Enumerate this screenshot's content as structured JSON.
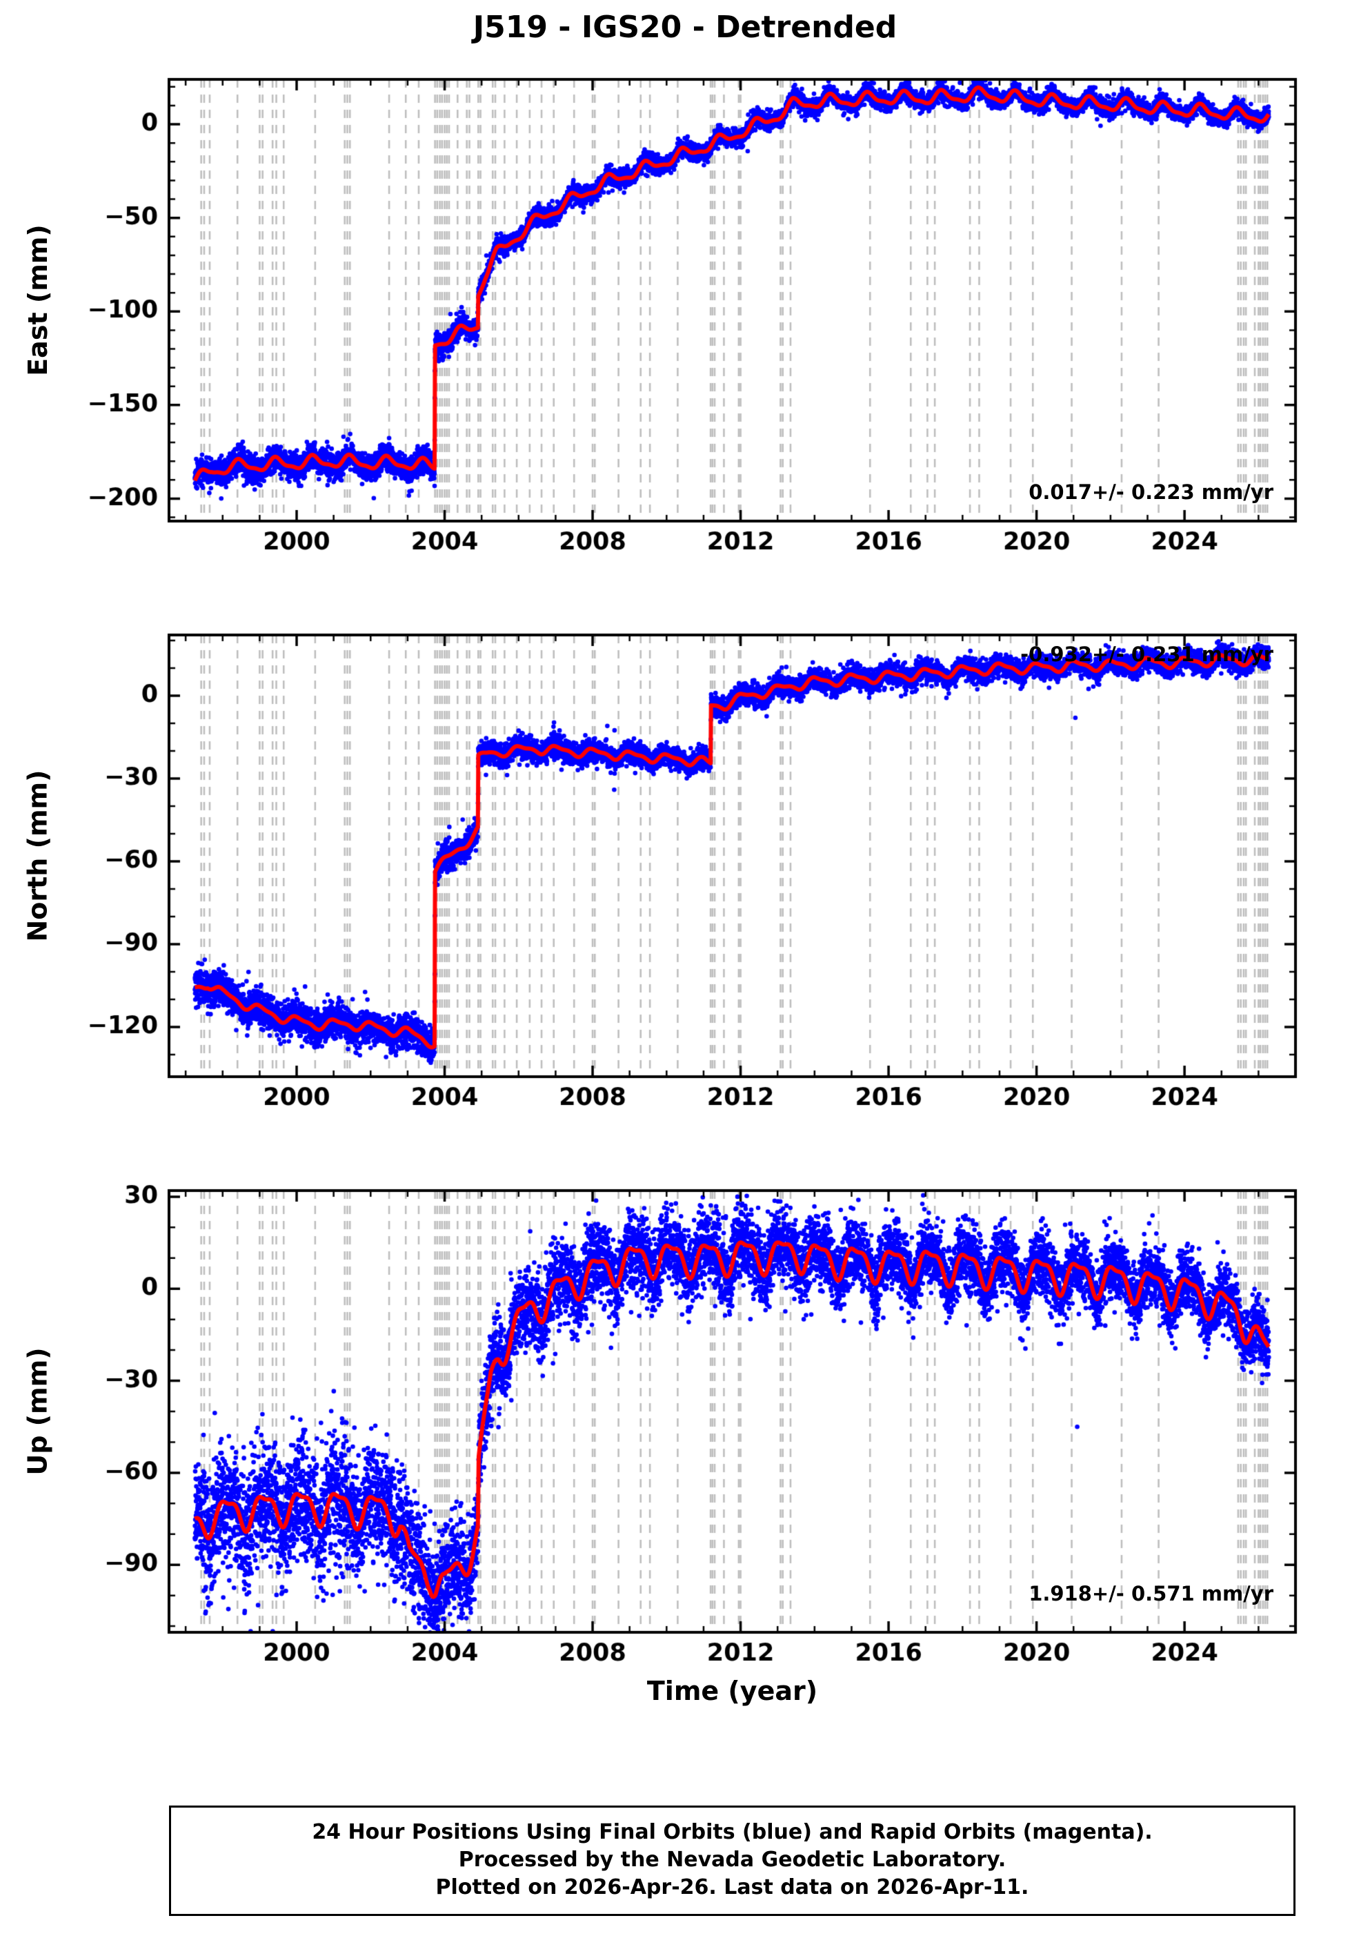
{
  "title": "J519 - IGS20 - Detrended",
  "xlabel": "Time (year)",
  "caption": {
    "line1": "24 Hour Positions Using Final Orbits (blue) and Rapid Orbits (magenta).",
    "line2": "Processed by the Nevada Geodetic Laboratory.",
    "line3": "Plotted on 2026-Apr-26. Last data on 2026-Apr-11."
  },
  "colors": {
    "final_orbit_points": "#0000ff",
    "rapid_orbit_points": "#ff00ff",
    "trend_line": "#ff0000",
    "event_lines": "#bdbdbd",
    "frame": "#000000",
    "background": "#ffffff"
  },
  "axis": {
    "xlim": [
      1996.55,
      2027.0
    ],
    "xticks": [
      2000,
      2004,
      2008,
      2012,
      2016,
      2020,
      2024
    ],
    "x_minor_step": 1,
    "grid": false
  },
  "event_lines_years": [
    1997.42,
    1997.5,
    1997.65,
    1998.4,
    1999.0,
    1999.08,
    1999.35,
    1999.45,
    1999.65,
    2000.5,
    2001.3,
    2001.37,
    2001.44,
    2002.5,
    2002.95,
    2003.3,
    2003.74,
    2003.8,
    2003.87,
    2003.93,
    2004.0,
    2004.06,
    2004.12,
    2004.35,
    2004.6,
    2004.67,
    2004.91,
    2004.97,
    2005.3,
    2005.37,
    2005.62,
    2005.95,
    2006.3,
    2006.62,
    2006.95,
    2007.5,
    2008.0,
    2008.06,
    2008.7,
    2009.3,
    2009.55,
    2010.3,
    2011.19,
    2011.24,
    2011.3,
    2011.55,
    2011.95,
    2012.0,
    2013.08,
    2013.14,
    2013.35,
    2015.5,
    2016.6,
    2017.05,
    2017.25,
    2018.2,
    2018.45,
    2019.3,
    2019.9,
    2020.95,
    2022.3,
    2023.3,
    2025.45,
    2025.52,
    2025.6,
    2025.66,
    2025.9,
    2026.0,
    2026.05,
    2026.12,
    2026.18,
    2026.24
  ],
  "chart_data": [
    {
      "type": "scatter",
      "component": "east",
      "ylabel": "East (mm)",
      "ylim": [
        -212,
        24
      ],
      "yticks": [
        0,
        -50,
        -100,
        -150,
        -200
      ],
      "y_minor_step": 10,
      "annotation": "0.017+/- 0.223 mm/yr",
      "annotation_corner": "bottom-right",
      "x_start": 1997.25,
      "x_end": 2026.28,
      "seasonal_amp_mm": 3.0,
      "seasonal_phase": 0.45,
      "noise_profile": [
        [
          1997.25,
          3.4
        ],
        [
          2004.0,
          3.2
        ],
        [
          2005.0,
          2.4
        ],
        [
          2013.0,
          2.1
        ],
        [
          2026.3,
          2.1
        ]
      ],
      "outliers": [],
      "trend": [
        [
          1997.25,
          -191
        ],
        [
          1997.7,
          -185
        ],
        [
          1998.2,
          -183
        ],
        [
          1999.0,
          -182
        ],
        [
          2000.0,
          -181
        ],
        [
          2001.0,
          -180
        ],
        [
          2002.0,
          -181
        ],
        [
          2003.0,
          -181
        ],
        [
          2003.73,
          -183
        ],
        [
          2003.74,
          -117
        ],
        [
          2004.1,
          -114
        ],
        [
          2004.5,
          -111
        ],
        [
          2004.9,
          -107
        ],
        [
          2004.91,
          -90
        ],
        [
          2005.1,
          -80
        ],
        [
          2005.4,
          -70
        ],
        [
          2005.8,
          -62
        ],
        [
          2006.2,
          -56
        ],
        [
          2006.6,
          -50
        ],
        [
          2007.0,
          -45
        ],
        [
          2007.5,
          -40
        ],
        [
          2008.0,
          -34
        ],
        [
          2008.5,
          -30
        ],
        [
          2009.0,
          -26
        ],
        [
          2009.5,
          -23
        ],
        [
          2010.0,
          -19
        ],
        [
          2010.5,
          -16
        ],
        [
          2011.0,
          -12
        ],
        [
          2011.5,
          -9
        ],
        [
          2012.0,
          -4
        ],
        [
          2012.5,
          0
        ],
        [
          2013.0,
          5
        ],
        [
          2013.4,
          10
        ],
        [
          2014.0,
          12
        ],
        [
          2015.0,
          13
        ],
        [
          2016.0,
          14
        ],
        [
          2017.0,
          14
        ],
        [
          2018.0,
          15
        ],
        [
          2018.6,
          16
        ],
        [
          2019.5,
          14
        ],
        [
          2020.5,
          12
        ],
        [
          2021.5,
          11
        ],
        [
          2022.5,
          10
        ],
        [
          2023.5,
          8
        ],
        [
          2024.5,
          7
        ],
        [
          2025.5,
          5
        ],
        [
          2026.28,
          4
        ]
      ]
    },
    {
      "type": "scatter",
      "component": "north",
      "ylabel": "North (mm)",
      "ylim": [
        -138,
        22
      ],
      "yticks": [
        0,
        -30,
        -60,
        -90,
        -120
      ],
      "y_minor_step": 10,
      "annotation": "-0.932+/- 0.231 mm/yr",
      "annotation_corner": "top-right",
      "x_start": 1997.25,
      "x_end": 2026.28,
      "seasonal_amp_mm": 1.6,
      "seasonal_phase": 0.05,
      "noise_profile": [
        [
          1997.25,
          3.0
        ],
        [
          2004.0,
          2.8
        ],
        [
          2005.0,
          2.0
        ],
        [
          2013.0,
          1.8
        ],
        [
          2026.3,
          1.8
        ]
      ],
      "outliers": [
        [
          2021.05,
          -8
        ]
      ],
      "trend": [
        [
          1997.25,
          -106
        ],
        [
          1997.6,
          -104
        ],
        [
          1998.0,
          -108
        ],
        [
          1998.5,
          -111
        ],
        [
          1999.0,
          -114
        ],
        [
          1999.5,
          -116
        ],
        [
          2000.0,
          -118
        ],
        [
          2000.5,
          -119
        ],
        [
          2001.0,
          -119
        ],
        [
          2001.5,
          -119
        ],
        [
          2002.0,
          -120
        ],
        [
          2002.5,
          -121
        ],
        [
          2003.0,
          -122
        ],
        [
          2003.4,
          -124
        ],
        [
          2003.73,
          -126
        ],
        [
          2003.74,
          -63
        ],
        [
          2004.1,
          -59
        ],
        [
          2004.5,
          -54
        ],
        [
          2004.9,
          -49
        ],
        [
          2004.91,
          -23
        ],
        [
          2005.2,
          -21
        ],
        [
          2005.6,
          -20
        ],
        [
          2006.0,
          -20
        ],
        [
          2006.5,
          -19
        ],
        [
          2007.0,
          -20
        ],
        [
          2007.5,
          -20
        ],
        [
          2008.0,
          -21
        ],
        [
          2008.5,
          -21
        ],
        [
          2009.0,
          -22
        ],
        [
          2009.5,
          -22
        ],
        [
          2010.0,
          -23
        ],
        [
          2010.5,
          -23
        ],
        [
          2011.0,
          -24
        ],
        [
          2011.19,
          -25
        ],
        [
          2011.2,
          -4
        ],
        [
          2011.6,
          -3
        ],
        [
          2012.0,
          -1
        ],
        [
          2012.5,
          1
        ],
        [
          2013.0,
          2
        ],
        [
          2013.5,
          4
        ],
        [
          2014.0,
          5
        ],
        [
          2015.0,
          6
        ],
        [
          2016.0,
          7
        ],
        [
          2017.0,
          8
        ],
        [
          2018.0,
          9
        ],
        [
          2019.0,
          10
        ],
        [
          2020.0,
          10
        ],
        [
          2021.0,
          11
        ],
        [
          2022.0,
          11
        ],
        [
          2023.0,
          12
        ],
        [
          2024.0,
          12
        ],
        [
          2025.0,
          13
        ],
        [
          2026.28,
          13
        ]
      ]
    },
    {
      "type": "scatter",
      "component": "up",
      "ylabel": "Up (mm)",
      "ylim": [
        -112,
        32
      ],
      "yticks": [
        30,
        0,
        -30,
        -60,
        -90
      ],
      "y_minor_step": 10,
      "annotation": "1.918+/- 0.571 mm/yr",
      "annotation_corner": "bottom-right",
      "x_start": 1997.25,
      "x_end": 2026.28,
      "seasonal_amp_mm": 5.0,
      "seasonal_phase": 0.12,
      "noise_profile": [
        [
          1997.25,
          9.5
        ],
        [
          2003.0,
          9.0
        ],
        [
          2004.6,
          7.5
        ],
        [
          2005.5,
          6.5
        ],
        [
          2012.0,
          6.0
        ],
        [
          2016.0,
          5.5
        ],
        [
          2022.0,
          5.0
        ],
        [
          2025.0,
          4.5
        ],
        [
          2026.3,
          5.0
        ]
      ],
      "outliers": [
        [
          2021.1,
          -45
        ]
      ],
      "trend": [
        [
          1997.25,
          -78
        ],
        [
          1997.7,
          -74
        ],
        [
          1998.3,
          -73
        ],
        [
          1999.0,
          -72
        ],
        [
          1999.7,
          -71
        ],
        [
          2000.4,
          -71
        ],
        [
          2001.1,
          -71
        ],
        [
          2001.8,
          -72
        ],
        [
          2002.5,
          -72
        ],
        [
          2002.8,
          -76
        ],
        [
          2003.05,
          -88
        ],
        [
          2003.3,
          -91
        ],
        [
          2003.6,
          -92
        ],
        [
          2003.75,
          -96
        ],
        [
          2004.0,
          -97
        ],
        [
          2004.2,
          -94
        ],
        [
          2004.45,
          -90
        ],
        [
          2004.7,
          -85
        ],
        [
          2004.9,
          -80
        ],
        [
          2004.92,
          -58
        ],
        [
          2005.1,
          -42
        ],
        [
          2005.25,
          -30
        ],
        [
          2005.45,
          -22
        ],
        [
          2005.7,
          -16
        ],
        [
          2006.0,
          -11
        ],
        [
          2006.4,
          -6
        ],
        [
          2006.8,
          -3
        ],
        [
          2007.2,
          0
        ],
        [
          2007.6,
          3
        ],
        [
          2008.0,
          5
        ],
        [
          2008.5,
          7
        ],
        [
          2009.0,
          9
        ],
        [
          2009.5,
          10
        ],
        [
          2010.0,
          10
        ],
        [
          2011.0,
          10
        ],
        [
          2012.0,
          11
        ],
        [
          2013.0,
          11
        ],
        [
          2013.5,
          12
        ],
        [
          2014.0,
          10
        ],
        [
          2015.0,
          9
        ],
        [
          2016.0,
          8
        ],
        [
          2017.0,
          8
        ],
        [
          2018.0,
          7
        ],
        [
          2019.0,
          6
        ],
        [
          2020.0,
          5
        ],
        [
          2021.0,
          4
        ],
        [
          2022.0,
          3
        ],
        [
          2023.0,
          1
        ],
        [
          2024.0,
          -1
        ],
        [
          2024.6,
          -3
        ],
        [
          2025.1,
          -6
        ],
        [
          2025.5,
          -9
        ],
        [
          2025.8,
          -13
        ],
        [
          2026.05,
          -18
        ],
        [
          2026.28,
          -22
        ]
      ]
    }
  ]
}
